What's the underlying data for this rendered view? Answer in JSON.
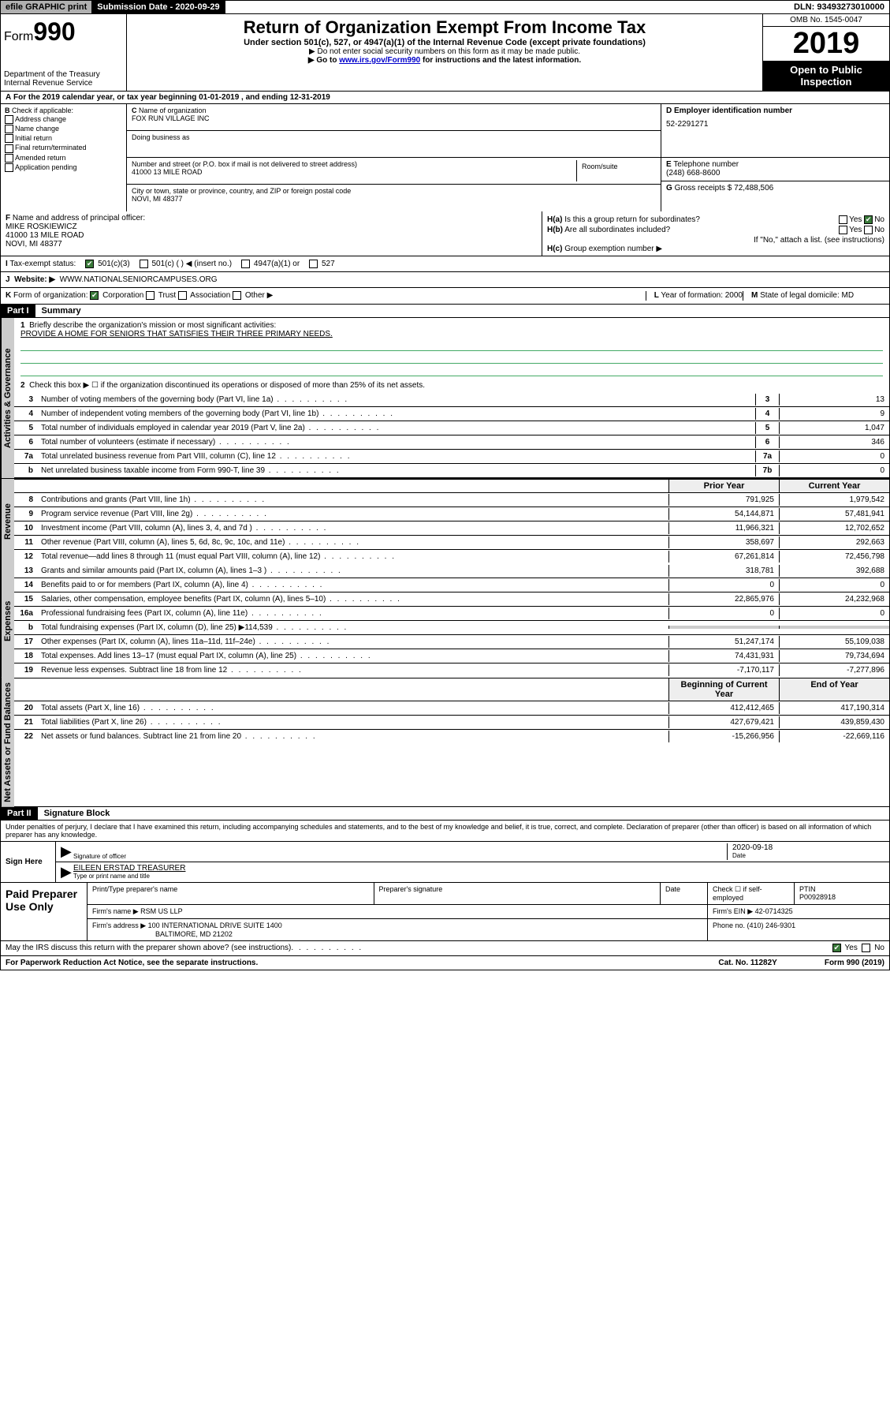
{
  "topbar": {
    "efile": "efile GRAPHIC print",
    "subdate_label": "Submission Date - ",
    "subdate": "2020-09-29",
    "dln_label": "DLN: ",
    "dln": "93493273010000"
  },
  "header": {
    "form": "Form",
    "num": "990",
    "dept": "Department of the Treasury Internal Revenue Service",
    "title": "Return of Organization Exempt From Income Tax",
    "subtitle": "Under section 501(c), 527, or 4947(a)(1) of the Internal Revenue Code (except private foundations)",
    "instr1": "Do not enter social security numbers on this form as it may be made public.",
    "instr2_a": "Go to ",
    "instr2_link": "www.irs.gov/Form990",
    "instr2_b": " for instructions and the latest information.",
    "omb": "OMB No. 1545-0047",
    "year": "2019",
    "insp": "Open to Public Inspection"
  },
  "rowA": "For the 2019 calendar year, or tax year beginning 01-01-2019   , and ending 12-31-2019",
  "B": {
    "label": "Check if applicable:",
    "opts": [
      "Address change",
      "Name change",
      "Initial return",
      "Final return/terminated",
      "Amended return",
      "Application pending"
    ]
  },
  "C": {
    "name_label": "Name of organization",
    "name": "FOX RUN VILLAGE INC",
    "dba_label": "Doing business as",
    "dba": "",
    "addr_label": "Number and street (or P.O. box if mail is not delivered to street address)",
    "addr": "41000 13 MILE ROAD",
    "room_label": "Room/suite",
    "city_label": "City or town, state or province, country, and ZIP or foreign postal code",
    "city": "NOVI, MI  48377"
  },
  "D": {
    "label": "Employer identification number",
    "val": "52-2291271"
  },
  "E": {
    "label": "Telephone number",
    "val": "(248) 668-8600"
  },
  "G": {
    "label": "Gross receipts $ ",
    "val": "72,488,506"
  },
  "F": {
    "label": "Name and address of principal officer:",
    "name": "MIKE ROSKIEWICZ",
    "addr": "41000 13 MILE ROAD",
    "city": "NOVI, MI  48377"
  },
  "H": {
    "a": "Is this a group return for subordinates?",
    "b": "Are all subordinates included?",
    "b2": "If \"No,\" attach a list. (see instructions)",
    "c": "Group exemption number ▶",
    "yes": "Yes",
    "no": "No"
  },
  "I": {
    "label": "Tax-exempt status:",
    "o1": "501(c)(3)",
    "o2": "501(c) (   ) ◀ (insert no.)",
    "o3": "4947(a)(1) or",
    "o4": "527"
  },
  "J": {
    "label": "Website: ▶",
    "val": "WWW.NATIONALSENIORCAMPUSES.ORG"
  },
  "K": {
    "label": "Form of organization:",
    "opts": [
      "Corporation",
      "Trust",
      "Association",
      "Other ▶"
    ],
    "L": "Year of formation: ",
    "Lval": "2000",
    "M": "State of legal domicile:",
    "Mval": "MD"
  },
  "part1": {
    "hdr": "Part I",
    "title": "Summary"
  },
  "summary": {
    "l1_label": "Briefly describe the organization's mission or most significant activities:",
    "l1_text": "PROVIDE A HOME FOR SENIORS THAT SATISFIES THEIR THREE PRIMARY NEEDS.",
    "l2": "Check this box ▶ ☐  if the organization discontinued its operations or disposed of more than 25% of its net assets.",
    "rows_a": [
      {
        "n": "3",
        "t": "Number of voting members of the governing body (Part VI, line 1a)",
        "b": "3",
        "v": "13"
      },
      {
        "n": "4",
        "t": "Number of independent voting members of the governing body (Part VI, line 1b)",
        "b": "4",
        "v": "9"
      },
      {
        "n": "5",
        "t": "Total number of individuals employed in calendar year 2019 (Part V, line 2a)",
        "b": "5",
        "v": "1,047"
      },
      {
        "n": "6",
        "t": "Total number of volunteers (estimate if necessary)",
        "b": "6",
        "v": "346"
      },
      {
        "n": "7a",
        "t": "Total unrelated business revenue from Part VIII, column (C), line 12",
        "b": "7a",
        "v": "0"
      },
      {
        "n": "b",
        "t": "Net unrelated business taxable income from Form 990-T, line 39",
        "b": "7b",
        "v": "0"
      }
    ],
    "col_prior": "Prior Year",
    "col_curr": "Current Year",
    "rows_rev": [
      {
        "n": "8",
        "t": "Contributions and grants (Part VIII, line 1h)",
        "p": "791,925",
        "c": "1,979,542"
      },
      {
        "n": "9",
        "t": "Program service revenue (Part VIII, line 2g)",
        "p": "54,144,871",
        "c": "57,481,941"
      },
      {
        "n": "10",
        "t": "Investment income (Part VIII, column (A), lines 3, 4, and 7d )",
        "p": "11,966,321",
        "c": "12,702,652"
      },
      {
        "n": "11",
        "t": "Other revenue (Part VIII, column (A), lines 5, 6d, 8c, 9c, 10c, and 11e)",
        "p": "358,697",
        "c": "292,663"
      },
      {
        "n": "12",
        "t": "Total revenue—add lines 8 through 11 (must equal Part VIII, column (A), line 12)",
        "p": "67,261,814",
        "c": "72,456,798"
      }
    ],
    "rows_exp": [
      {
        "n": "13",
        "t": "Grants and similar amounts paid (Part IX, column (A), lines 1–3 )",
        "p": "318,781",
        "c": "392,688"
      },
      {
        "n": "14",
        "t": "Benefits paid to or for members (Part IX, column (A), line 4)",
        "p": "0",
        "c": "0"
      },
      {
        "n": "15",
        "t": "Salaries, other compensation, employee benefits (Part IX, column (A), lines 5–10)",
        "p": "22,865,976",
        "c": "24,232,968"
      },
      {
        "n": "16a",
        "t": "Professional fundraising fees (Part IX, column (A), line 11e)",
        "p": "0",
        "c": "0"
      },
      {
        "n": "b",
        "t": "Total fundraising expenses (Part IX, column (D), line 25) ▶114,539",
        "p": "",
        "c": ""
      },
      {
        "n": "17",
        "t": "Other expenses (Part IX, column (A), lines 11a–11d, 11f–24e)",
        "p": "51,247,174",
        "c": "55,109,038"
      },
      {
        "n": "18",
        "t": "Total expenses. Add lines 13–17 (must equal Part IX, column (A), line 25)",
        "p": "74,431,931",
        "c": "79,734,694"
      },
      {
        "n": "19",
        "t": "Revenue less expenses. Subtract line 18 from line 12",
        "p": "-7,170,117",
        "c": "-7,277,896"
      }
    ],
    "col_beg": "Beginning of Current Year",
    "col_end": "End of Year",
    "rows_na": [
      {
        "n": "20",
        "t": "Total assets (Part X, line 16)",
        "p": "412,412,465",
        "c": "417,190,314"
      },
      {
        "n": "21",
        "t": "Total liabilities (Part X, line 26)",
        "p": "427,679,421",
        "c": "439,859,430"
      },
      {
        "n": "22",
        "t": "Net assets or fund balances. Subtract line 21 from line 20",
        "p": "-15,266,956",
        "c": "-22,669,116"
      }
    ],
    "tab_gov": "Activities & Governance",
    "tab_rev": "Revenue",
    "tab_exp": "Expenses",
    "tab_na": "Net Assets or Fund Balances"
  },
  "part2": {
    "hdr": "Part II",
    "title": "Signature Block"
  },
  "perjury": "Under penalties of perjury, I declare that I have examined this return, including accompanying schedules and statements, and to the best of my knowledge and belief, it is true, correct, and complete. Declaration of preparer (other than officer) is based on all information of which preparer has any knowledge.",
  "sign": {
    "here": "Sign Here",
    "sig_label": "Signature of officer",
    "date": "2020-09-18",
    "date_label": "Date",
    "name": "EILEEN ERSTAD TREASURER",
    "name_label": "Type or print name and title"
  },
  "paid": {
    "label": "Paid Preparer Use Only",
    "h1": "Print/Type preparer's name",
    "h2": "Preparer's signature",
    "h3": "Date",
    "h4": "Check ☐ if self-employed",
    "h5_l": "PTIN",
    "h5": "P00928918",
    "firm_l": "Firm's name   ▶",
    "firm": "RSM US LLP",
    "ein_l": "Firm's EIN ▶ ",
    "ein": "42-0714325",
    "addr_l": "Firm's address ▶",
    "addr1": "100 INTERNATIONAL DRIVE SUITE 1400",
    "addr2": "BALTIMORE, MD  21202",
    "phone_l": "Phone no. ",
    "phone": "(410) 246-9301"
  },
  "discuss": "May the IRS discuss this return with the preparer shown above? (see instructions)",
  "footer": {
    "l": "For Paperwork Reduction Act Notice, see the separate instructions.",
    "m": "Cat. No. 11282Y",
    "r": "Form 990 (2019)"
  }
}
